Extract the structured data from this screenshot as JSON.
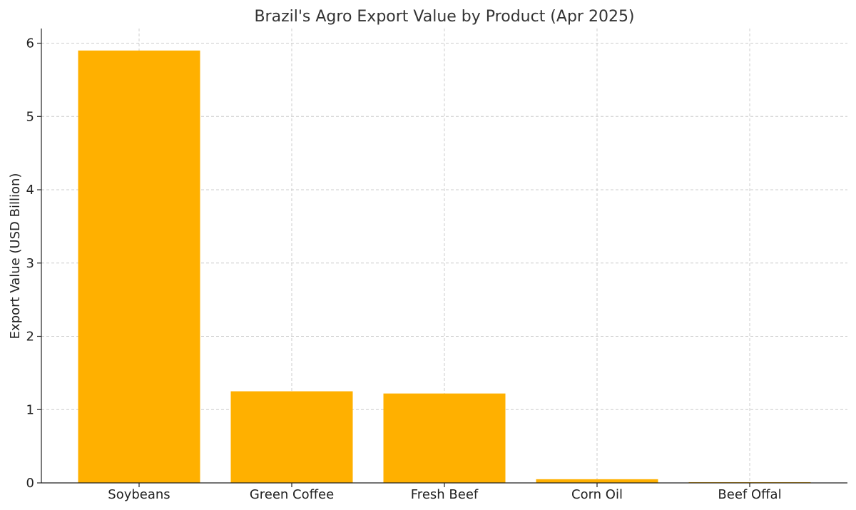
{
  "chart_data": {
    "type": "bar",
    "title": "Brazil's Agro Export Value by Product (Apr 2025)",
    "xlabel": "",
    "ylabel": "Export Value (USD Billion)",
    "categories": [
      "Soybeans",
      "Green Coffee",
      "Fresh Beef",
      "Corn Oil",
      "Beef Offal"
    ],
    "values": [
      5.9,
      1.25,
      1.22,
      0.05,
      0.01
    ],
    "ylim": [
      0,
      6.2
    ],
    "yticks": [
      0,
      1,
      2,
      3,
      4,
      5,
      6
    ],
    "grid": true,
    "bar_color": "#FFB000"
  }
}
